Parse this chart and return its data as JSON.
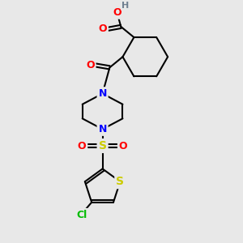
{
  "bg_color": "#e8e8e8",
  "line_color": "#000000",
  "bond_width": 1.5,
  "atom_colors": {
    "O": "#ff0000",
    "N": "#0000ff",
    "S_sulfonyl": "#cccc00",
    "S_thiophene": "#cccc00",
    "Cl": "#00bb00",
    "H": "#708090",
    "C": "#000000"
  },
  "font_size_atom": 9
}
